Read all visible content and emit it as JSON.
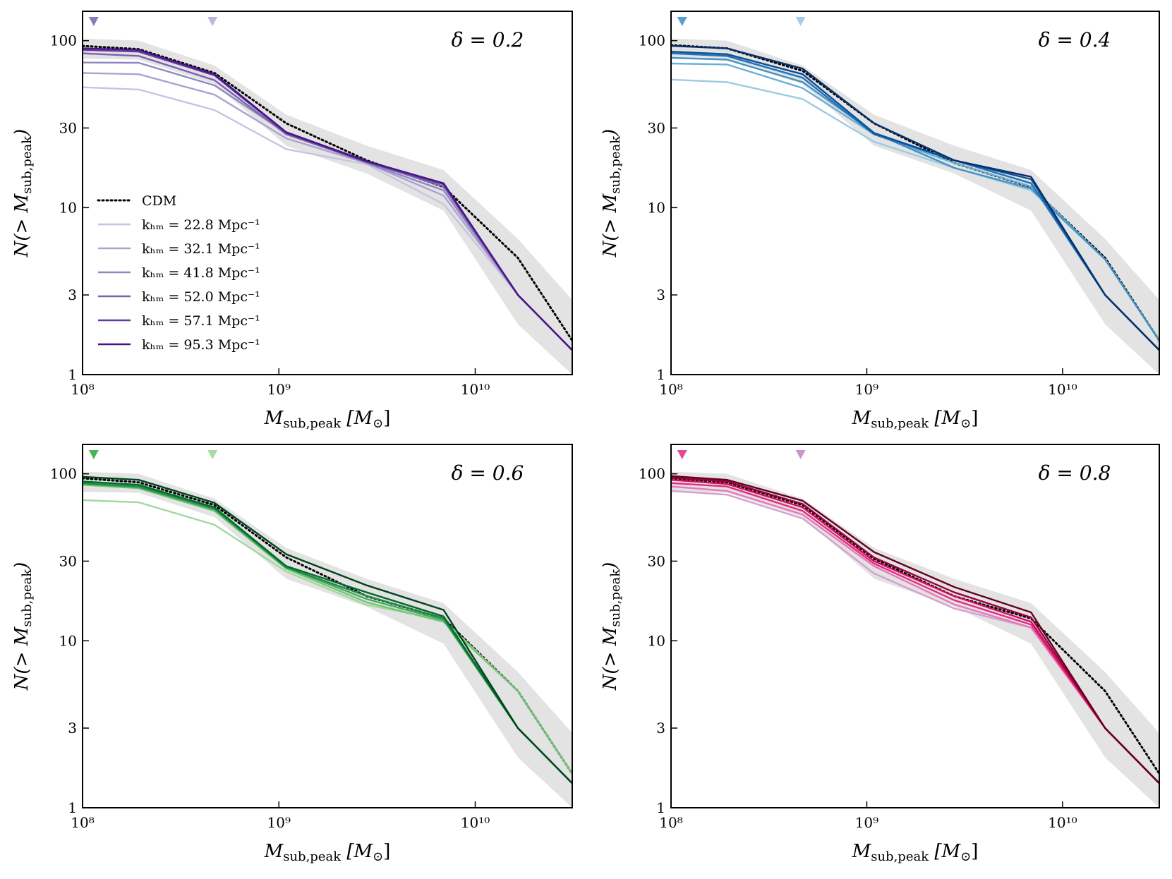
{
  "chart_data": [
    {
      "type": "line",
      "annotation": "δ = 0.2",
      "xlabel": [
        "M",
        "sub,peak",
        " [M",
        "⊙",
        "]"
      ],
      "ylabel": [
        "N(> M",
        "sub,peak",
        ")"
      ],
      "xlog": true,
      "ylog": true,
      "xlim": [
        100000000.0,
        31200000000.0
      ],
      "ylim": [
        1,
        150
      ],
      "xticks": [
        {
          "value": 100000000.0,
          "label": "10⁸"
        },
        {
          "value": 1000000000.0,
          "label": "10⁹"
        },
        {
          "value": 10000000000.0,
          "label": "10¹⁰"
        }
      ],
      "yticks": [
        1,
        3,
        10,
        30,
        100
      ],
      "x": [
        100000000.0,
        193000000.0,
        470000000.0,
        1090000000.0,
        2800000000.0,
        6900000000.0,
        16500000000.0,
        31200000000.0
      ],
      "band": {
        "color": "#e3e3e3",
        "upper": [
          103,
          100,
          71,
          36,
          23.5,
          16.8,
          6.5,
          2.8
        ],
        "lower": [
          78,
          77,
          55,
          23.5,
          16,
          9.6,
          2.0,
          1
        ]
      },
      "markers": {
        "x": [
          114000000.0,
          459000000.0
        ],
        "colors": [
          "#8a7dbd",
          "#bdb6db"
        ]
      },
      "legend": "lower left",
      "series": [
        {
          "name": "CDM",
          "color": "#000000",
          "dash": "dotted",
          "values": [
            93,
            89,
            64,
            32,
            19.2,
            13.3,
            5.0,
            1.6
          ]
        },
        {
          "name": "kₕₘ = 22.8 Mpc⁻¹",
          "color": "#c8c3e0",
          "values": [
            52.6,
            51,
            38.4,
            22.4,
            18.2,
            10.5,
            3.0,
            1.4
          ]
        },
        {
          "name": "kₕₘ = 32.1 Mpc⁻¹",
          "color": "#aaa3cf",
          "values": [
            64,
            63,
            47.5,
            26,
            18.5,
            11.8,
            3.0,
            1.4
          ]
        },
        {
          "name": "kₕₘ = 41.8 Mpc⁻¹",
          "color": "#8f88c0",
          "values": [
            74,
            73.7,
            54,
            28,
            18.5,
            12.7,
            3.0,
            1.4
          ]
        },
        {
          "name": "kₕₘ = 52.0 Mpc⁻¹",
          "color": "#7a62b0",
          "values": [
            84,
            81,
            58,
            27.5,
            18.8,
            13.4,
            3.0,
            1.4
          ]
        },
        {
          "name": "kₕₘ = 57.1 Mpc⁻¹",
          "color": "#5f3c9e",
          "values": [
            88,
            86,
            62,
            28,
            18.8,
            13.8,
            3.0,
            1.4
          ]
        },
        {
          "name": "kₕₘ = 95.3 Mpc⁻¹",
          "color": "#4a1486",
          "values": [
            90,
            88,
            63,
            28.3,
            19,
            14,
            3.0,
            1.4
          ]
        }
      ]
    },
    {
      "type": "line",
      "annotation": "δ = 0.4",
      "xlabel": [
        "M",
        "sub,peak",
        " [M",
        "⊙",
        "]"
      ],
      "ylabel": [
        "N(> M",
        "sub,peak",
        ")"
      ],
      "xlog": true,
      "ylog": true,
      "xlim": [
        100000000.0,
        31200000000.0
      ],
      "ylim": [
        1,
        150
      ],
      "xticks": [
        {
          "value": 100000000.0,
          "label": "10⁸"
        },
        {
          "value": 1000000000.0,
          "label": "10⁹"
        },
        {
          "value": 10000000000.0,
          "label": "10¹⁰"
        }
      ],
      "yticks": [
        1,
        3,
        10,
        30,
        100
      ],
      "x": [
        100000000.0,
        193000000.0,
        470000000.0,
        1090000000.0,
        2800000000.0,
        6900000000.0,
        16500000000.0,
        31200000000.0
      ],
      "band": {
        "color": "#e3e3e3",
        "upper": [
          103,
          100,
          71,
          36,
          23.5,
          16.8,
          6.5,
          2.8
        ],
        "lower": [
          78,
          77,
          55,
          23.5,
          16,
          9.6,
          2.0,
          1
        ]
      },
      "markers": {
        "x": [
          114000000.0,
          459000000.0
        ],
        "colors": [
          "#5a9fd0",
          "#a6cfe6"
        ]
      },
      "series": [
        {
          "color": "#000000",
          "dash": "dotted",
          "values": [
            94,
            90,
            66,
            32,
            18.5,
            13.3,
            5.0,
            1.6
          ]
        },
        {
          "color": "#9ecae1",
          "values": [
            58.5,
            56.5,
            44.7,
            24.8,
            17.3,
            12.7,
            4.9,
            1.6
          ]
        },
        {
          "color": "#6baed6",
          "values": [
            73,
            72,
            52,
            27.5,
            18.5,
            13.4,
            4.9,
            1.6
          ]
        },
        {
          "color": "#4292c6",
          "values": [
            79,
            77,
            56.5,
            28,
            17.3,
            13,
            4.9,
            1.6
          ]
        },
        {
          "color": "#2171b5",
          "values": [
            84,
            81,
            60,
            27.5,
            19.2,
            14,
            3.0,
            1.4
          ]
        },
        {
          "color": "#08519c",
          "values": [
            86,
            83,
            63,
            28,
            19.2,
            14.8,
            3.0,
            1.4
          ]
        },
        {
          "color": "#08306b",
          "values": [
            93,
            90,
            68,
            32,
            19.2,
            15.3,
            3.0,
            1.4
          ]
        }
      ]
    },
    {
      "type": "line",
      "annotation": "δ = 0.6",
      "xlabel": [
        "M",
        "sub,peak",
        " [M",
        "⊙",
        "]"
      ],
      "ylabel": [
        "N(> M",
        "sub,peak",
        ")"
      ],
      "xlog": true,
      "ylog": true,
      "xlim": [
        100000000.0,
        31200000000.0
      ],
      "ylim": [
        1,
        150
      ],
      "xticks": [
        {
          "value": 100000000.0,
          "label": "10⁸"
        },
        {
          "value": 1000000000.0,
          "label": "10⁹"
        },
        {
          "value": 10000000000.0,
          "label": "10¹⁰"
        }
      ],
      "yticks": [
        1,
        3,
        10,
        30,
        100
      ],
      "x": [
        100000000.0,
        193000000.0,
        470000000.0,
        1090000000.0,
        2800000000.0,
        6900000000.0,
        16500000000.0,
        31200000000.0
      ],
      "band": {
        "color": "#e3e3e3",
        "upper": [
          103,
          100,
          71,
          36,
          23.5,
          16.8,
          6.5,
          2.8
        ],
        "lower": [
          78,
          77,
          55,
          23.5,
          16,
          9.6,
          2.0,
          1
        ]
      },
      "markers": {
        "x": [
          114000000.0,
          459000000.0
        ],
        "colors": [
          "#4fb35a",
          "#a6dc9f"
        ]
      },
      "series": [
        {
          "color": "#000000",
          "dash": "dotted",
          "values": [
            94,
            89,
            65,
            31.6,
            18.5,
            13.6,
            5.0,
            1.6
          ]
        },
        {
          "color": "#a1d99b",
          "values": [
            69.6,
            67.5,
            49.5,
            26,
            16.4,
            13.3,
            5.0,
            1.6
          ]
        },
        {
          "color": "#74c476",
          "values": [
            86,
            82,
            60,
            27,
            17.0,
            13.0,
            5.0,
            1.6
          ]
        },
        {
          "color": "#41ab5d",
          "values": [
            87,
            83,
            61,
            27.5,
            17.8,
            13.3,
            3.0,
            1.4
          ]
        },
        {
          "color": "#238b45",
          "values": [
            88,
            84,
            62,
            27.5,
            18.6,
            13.6,
            3.0,
            1.4
          ]
        },
        {
          "color": "#006d2c",
          "values": [
            90,
            86,
            63,
            28,
            19.5,
            14,
            3.0,
            1.4
          ]
        },
        {
          "color": "#00441b",
          "values": [
            96,
            92,
            67,
            33,
            21.5,
            15.3,
            3.0,
            1.4
          ]
        }
      ]
    },
    {
      "type": "line",
      "annotation": "δ = 0.8",
      "xlabel": [
        "M",
        "sub,peak",
        " [M",
        "⊙",
        "]"
      ],
      "ylabel": [
        "N(> M",
        "sub,peak",
        ")"
      ],
      "xlog": true,
      "ylog": true,
      "xlim": [
        100000000.0,
        31200000000.0
      ],
      "ylim": [
        1,
        150
      ],
      "xticks": [
        {
          "value": 100000000.0,
          "label": "10⁸"
        },
        {
          "value": 1000000000.0,
          "label": "10⁹"
        },
        {
          "value": 10000000000.0,
          "label": "10¹⁰"
        }
      ],
      "yticks": [
        1,
        3,
        10,
        30,
        100
      ],
      "x": [
        100000000.0,
        193000000.0,
        470000000.0,
        1090000000.0,
        2800000000.0,
        6900000000.0,
        16500000000.0,
        31200000000.0
      ],
      "band": {
        "color": "#e3e3e3",
        "upper": [
          103,
          100,
          71,
          36,
          23.5,
          16.8,
          6.5,
          2.8
        ],
        "lower": [
          78,
          77,
          55,
          23.5,
          16,
          9.6,
          2.0,
          1
        ]
      },
      "markers": {
        "x": [
          114000000.0,
          459000000.0
        ],
        "colors": [
          "#e3489a",
          "#cf93cc"
        ]
      },
      "series": [
        {
          "color": "#000000",
          "dash": "dotted",
          "values": [
            94,
            89,
            65,
            31,
            18.5,
            13.6,
            5.0,
            1.6
          ]
        },
        {
          "color": "#d4a0d0",
          "values": [
            79,
            75,
            54,
            25.3,
            15.6,
            12,
            3.0,
            1.4
          ]
        },
        {
          "color": "#e778b5",
          "values": [
            84,
            79,
            57,
            28,
            16.5,
            12,
            3.0,
            1.4
          ]
        },
        {
          "color": "#e7298a",
          "values": [
            88,
            84,
            60,
            29,
            17.5,
            12.5,
            3.0,
            1.4
          ]
        },
        {
          "color": "#ce1256",
          "values": [
            92,
            87,
            63,
            30,
            18.5,
            13,
            3.0,
            1.4
          ]
        },
        {
          "color": "#980043",
          "values": [
            95,
            90,
            66,
            31.5,
            19.5,
            13.8,
            3.0,
            1.4
          ]
        },
        {
          "color": "#67001f",
          "values": [
            97,
            92,
            69,
            34,
            21,
            14.8,
            3.0,
            1.4
          ]
        }
      ]
    }
  ]
}
